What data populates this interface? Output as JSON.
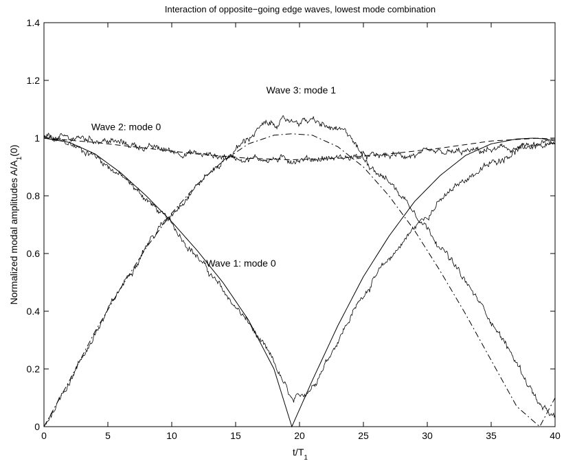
{
  "chart_data": {
    "type": "line",
    "title": "Interaction of opposite−going edge waves, lowest mode combination",
    "xlabel": {
      "main": "t/T",
      "sub": "1"
    },
    "ylabel": {
      "main": "Normalized modal amplitudes A/A",
      "sub": "1",
      "tail": "(0)"
    },
    "xlim": [
      0,
      40
    ],
    "ylim": [
      0,
      1.4
    ],
    "xticks": [
      0,
      5,
      10,
      15,
      20,
      25,
      30,
      35,
      40
    ],
    "xtick_labels": [
      "0",
      "5",
      "10",
      "15",
      "20",
      "25",
      "30",
      "35",
      "40"
    ],
    "yticks": [
      0,
      0.2,
      0.4,
      0.6,
      0.8,
      1,
      1.2,
      1.4
    ],
    "ytick_labels": [
      "0",
      "0.2",
      "0.4",
      "0.6",
      "0.8",
      "1",
      "1.2",
      "1.4"
    ],
    "grid": false,
    "annotations": [
      {
        "text": "Wave 1: mode 0",
        "x": 12.7,
        "y": 0.555
      },
      {
        "text": "Wave 2: mode 0",
        "x": 3.7,
        "y": 1.027
      },
      {
        "text": "Wave 3: mode 1",
        "x": 17.4,
        "y": 1.155
      }
    ],
    "series": [
      {
        "style": "solid",
        "x": [
          0,
          2,
          4,
          6,
          8,
          10,
          12,
          14,
          16,
          18,
          19.4,
          21,
          23,
          25,
          27,
          29,
          31,
          33,
          35,
          37,
          38.3,
          39,
          40
        ],
        "y": [
          1.0,
          0.985,
          0.945,
          0.88,
          0.8,
          0.71,
          0.61,
          0.5,
          0.37,
          0.2,
          0.0,
          0.16,
          0.35,
          0.52,
          0.66,
          0.78,
          0.87,
          0.94,
          0.98,
          0.997,
          1.0,
          0.998,
          0.99
        ]
      },
      {
        "style": "noisy-solid",
        "x": [
          0,
          2,
          4,
          6,
          8,
          10,
          12,
          14,
          16,
          18,
          19.5,
          21,
          23,
          25,
          27,
          29,
          31,
          33,
          35,
          37,
          39,
          40
        ],
        "y": [
          1.0,
          0.98,
          0.94,
          0.87,
          0.79,
          0.7,
          0.59,
          0.47,
          0.36,
          0.22,
          0.08,
          0.14,
          0.3,
          0.46,
          0.58,
          0.69,
          0.78,
          0.86,
          0.91,
          0.96,
          0.98,
          0.97
        ]
      },
      {
        "style": "dashed",
        "x": [
          0,
          4,
          8,
          12,
          16,
          19.4,
          23,
          27,
          31,
          35,
          38.8,
          40
        ],
        "y": [
          1.0,
          0.985,
          0.965,
          0.945,
          0.93,
          0.925,
          0.93,
          0.945,
          0.965,
          0.99,
          1.0,
          0.995
        ]
      },
      {
        "style": "noisy-solid",
        "x": [
          0,
          1.5,
          3,
          5,
          7,
          10,
          13,
          16,
          19,
          22,
          25,
          28,
          31,
          34,
          37,
          40
        ],
        "y": [
          1.0,
          1.0,
          1.0,
          0.99,
          0.975,
          0.955,
          0.94,
          0.93,
          0.925,
          0.93,
          0.935,
          0.94,
          0.945,
          0.955,
          0.965,
          0.975
        ]
      },
      {
        "style": "dash-dot",
        "x": [
          0,
          2,
          4,
          6,
          8,
          10,
          12,
          14,
          16,
          18,
          19.4,
          21,
          23,
          25,
          27,
          29,
          31,
          33,
          35,
          37,
          38.8,
          40
        ],
        "y": [
          0.0,
          0.16,
          0.33,
          0.48,
          0.62,
          0.74,
          0.84,
          0.92,
          0.98,
          1.01,
          1.015,
          1.01,
          0.97,
          0.9,
          0.8,
          0.68,
          0.54,
          0.39,
          0.23,
          0.07,
          0.0,
          0.1
        ]
      },
      {
        "style": "noisy-solid",
        "x": [
          0,
          2,
          4,
          6,
          8,
          10,
          12,
          14,
          16,
          17,
          19,
          21,
          22,
          24,
          25,
          27,
          29,
          31,
          33,
          35,
          37,
          39,
          40
        ],
        "y": [
          0.0,
          0.16,
          0.32,
          0.48,
          0.63,
          0.74,
          0.84,
          0.92,
          1.0,
          1.04,
          1.06,
          1.06,
          1.04,
          1.01,
          0.93,
          0.85,
          0.75,
          0.63,
          0.5,
          0.37,
          0.22,
          0.06,
          0.03
        ]
      }
    ]
  }
}
